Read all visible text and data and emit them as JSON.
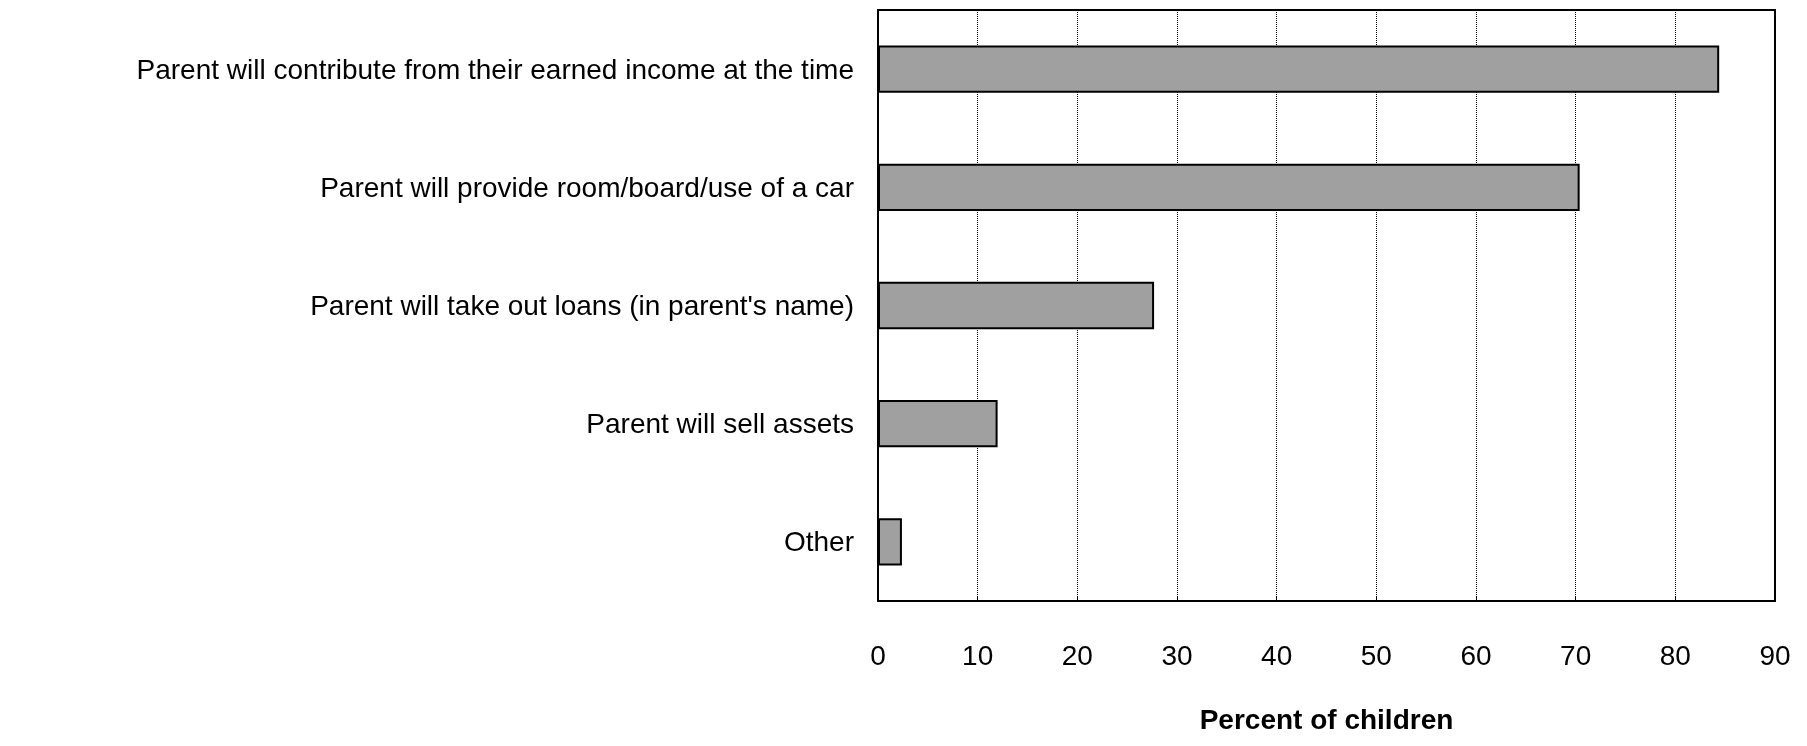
{
  "chart_data": {
    "type": "bar",
    "orientation": "horizontal",
    "xlabel": "Percent of children",
    "categories": [
      "Parent will contribute from their earned income at the time",
      "Parent will provide room/board/use of a car",
      "Parent will take out loans (in parent's name)",
      "Parent will sell assets",
      "Other"
    ],
    "values": [
      84.4,
      70.4,
      27.7,
      12.0,
      2.4
    ],
    "color": "#a0a0a0",
    "xlim": [
      0,
      90
    ],
    "xticks": [
      0,
      10,
      20,
      30,
      40,
      50,
      60,
      70,
      80,
      90
    ],
    "grid": "x",
    "line_style": "dotted"
  }
}
